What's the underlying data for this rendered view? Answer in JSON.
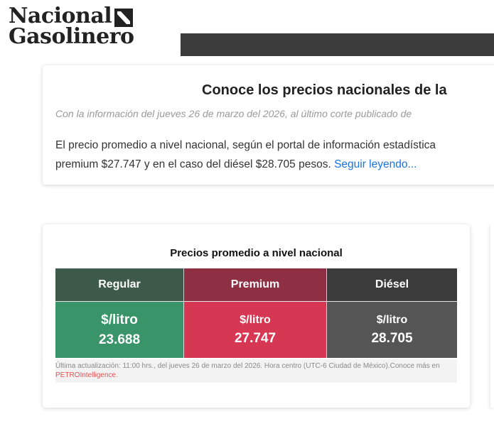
{
  "logo": {
    "line1": "Nacional",
    "line2": "Gasolinero"
  },
  "info_card": {
    "title": "Conoce los precios nacionales de la",
    "subtitle": "Con la información del jueves 26 de marzo del 2026, al último corte publicado de",
    "body_line1": "El precio promedio a nivel nacional, según el portal de información estadística",
    "body_line2": "premium $27.747 y en el caso del diésel $28.705 pesos. ",
    "read_more": "Seguir leyendo..."
  },
  "prices_card": {
    "title": "Precios promedio a nivel nacional",
    "columns": [
      {
        "label": "Regular",
        "unit": "$/litro",
        "value": "23.688",
        "header_color": "#3d5a4a",
        "value_color": "#3a946a"
      },
      {
        "label": "Premium",
        "unit": "$/litro",
        "value": "27.747",
        "header_color": "#8f2f44",
        "value_color": "#d63752"
      },
      {
        "label": "Diésel",
        "unit": "$/litro",
        "value": "28.705",
        "header_color": "#3b3b3b",
        "value_color": "#555555"
      }
    ],
    "note_text": "Última actualización: 11:00 hrs., del jueves 26 de marzo del 2026. Hora centro (UTC-6 Ciudad de México).Conoce más en ",
    "note_link": "PETROIntelligence",
    "note_end": "."
  }
}
